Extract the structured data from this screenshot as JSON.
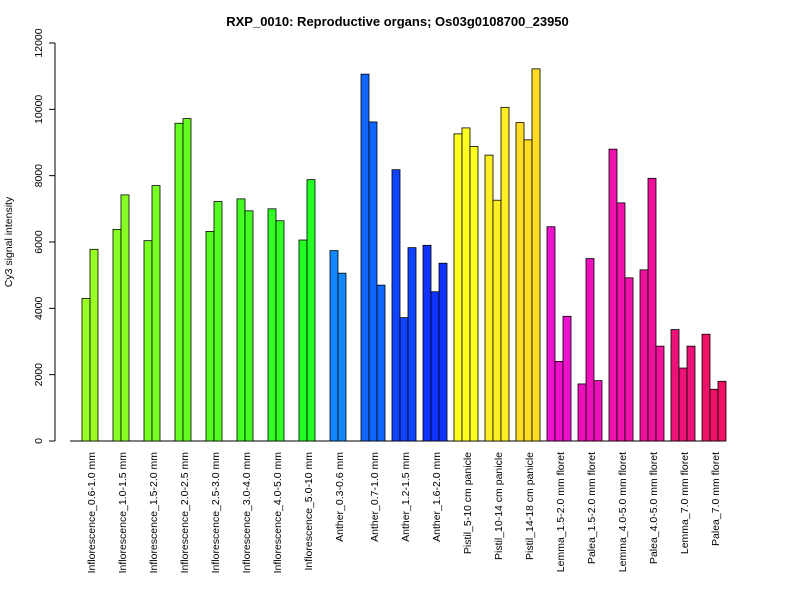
{
  "chart_data": {
    "type": "bar",
    "title": "RXP_0010: Reproductive organs; Os03g0108700_23950",
    "xlabel": "",
    "ylabel": "Cy3 signal intensity",
    "ylim": [
      0,
      12000
    ],
    "yticks": [
      0,
      2000,
      4000,
      6000,
      8000,
      10000,
      12000
    ],
    "grid": false,
    "legend": "none",
    "groups": [
      {
        "label": "Inflorescence_0.6-1.0 mm",
        "color": "#99ff22",
        "values": [
          4300,
          5780
        ]
      },
      {
        "label": "Inflorescence_1.0-1.5 mm",
        "color": "#88ff22",
        "values": [
          6380,
          7420
        ]
      },
      {
        "label": "Inflorescence_1.5-2.0 mm",
        "color": "#77ff22",
        "values": [
          6040,
          7700
        ]
      },
      {
        "label": "Inflorescence_2.0-2.5 mm",
        "color": "#66ff22",
        "values": [
          9580,
          9720
        ]
      },
      {
        "label": "Inflorescence_2.5-3.0 mm",
        "color": "#55ff22",
        "values": [
          6320,
          7220
        ]
      },
      {
        "label": "Inflorescence_3.0-4.0 mm",
        "color": "#44ff22",
        "values": [
          7300,
          6940
        ]
      },
      {
        "label": "Inflorescence_4.0-5.0 mm",
        "color": "#33ff22",
        "values": [
          7000,
          6640
        ]
      },
      {
        "label": "Inflorescence_5.0-10 mm",
        "color": "#22ff22",
        "values": [
          6060,
          7880
        ]
      },
      {
        "label": "Anther_0.3-0.6 mm",
        "color": "#1188ff",
        "values": [
          5740,
          5060
        ]
      },
      {
        "label": "Anther_0.7-1.0 mm",
        "color": "#1166ff",
        "values": [
          11060,
          9620,
          4700
        ]
      },
      {
        "label": "Anther_1.2-1.5 mm",
        "color": "#1144ff",
        "values": [
          8180,
          3720,
          5830
        ]
      },
      {
        "label": "Anther_1.6-2.0 mm",
        "color": "#1133ff",
        "values": [
          5900,
          4500,
          5360
        ]
      },
      {
        "label": "Pistil_5-10 cm panicle",
        "color": "#ffff22",
        "values": [
          9260,
          9440,
          8880
        ]
      },
      {
        "label": "Pistil_10-14 cm panicle",
        "color": "#ffee22",
        "values": [
          8620,
          7260,
          10060
        ]
      },
      {
        "label": "Pistil_14-18 cm panicle",
        "color": "#ffdd22",
        "values": [
          9600,
          9080,
          11220
        ]
      },
      {
        "label": "Lemma_1.5-2.0 mm floret",
        "color": "#ee11cc",
        "values": [
          6460,
          2400,
          3760
        ]
      },
      {
        "label": "Palea_1.5-2.0 mm floret",
        "color": "#ee11bb",
        "values": [
          1720,
          5500,
          1820
        ]
      },
      {
        "label": "Lemma_4.0-5.0 mm floret",
        "color": "#ee11aa",
        "values": [
          8800,
          7180,
          4920
        ]
      },
      {
        "label": "Palea_4.0-5.0 mm floret",
        "color": "#ee1199",
        "values": [
          5160,
          7920,
          2860
        ]
      },
      {
        "label": "Lemma_7.0 mm floret",
        "color": "#ee1177",
        "values": [
          3360,
          2200,
          2860
        ]
      },
      {
        "label": "Palea_7.0 mm floret",
        "color": "#ee1166",
        "values": [
          3220,
          1560,
          1800
        ]
      }
    ]
  }
}
